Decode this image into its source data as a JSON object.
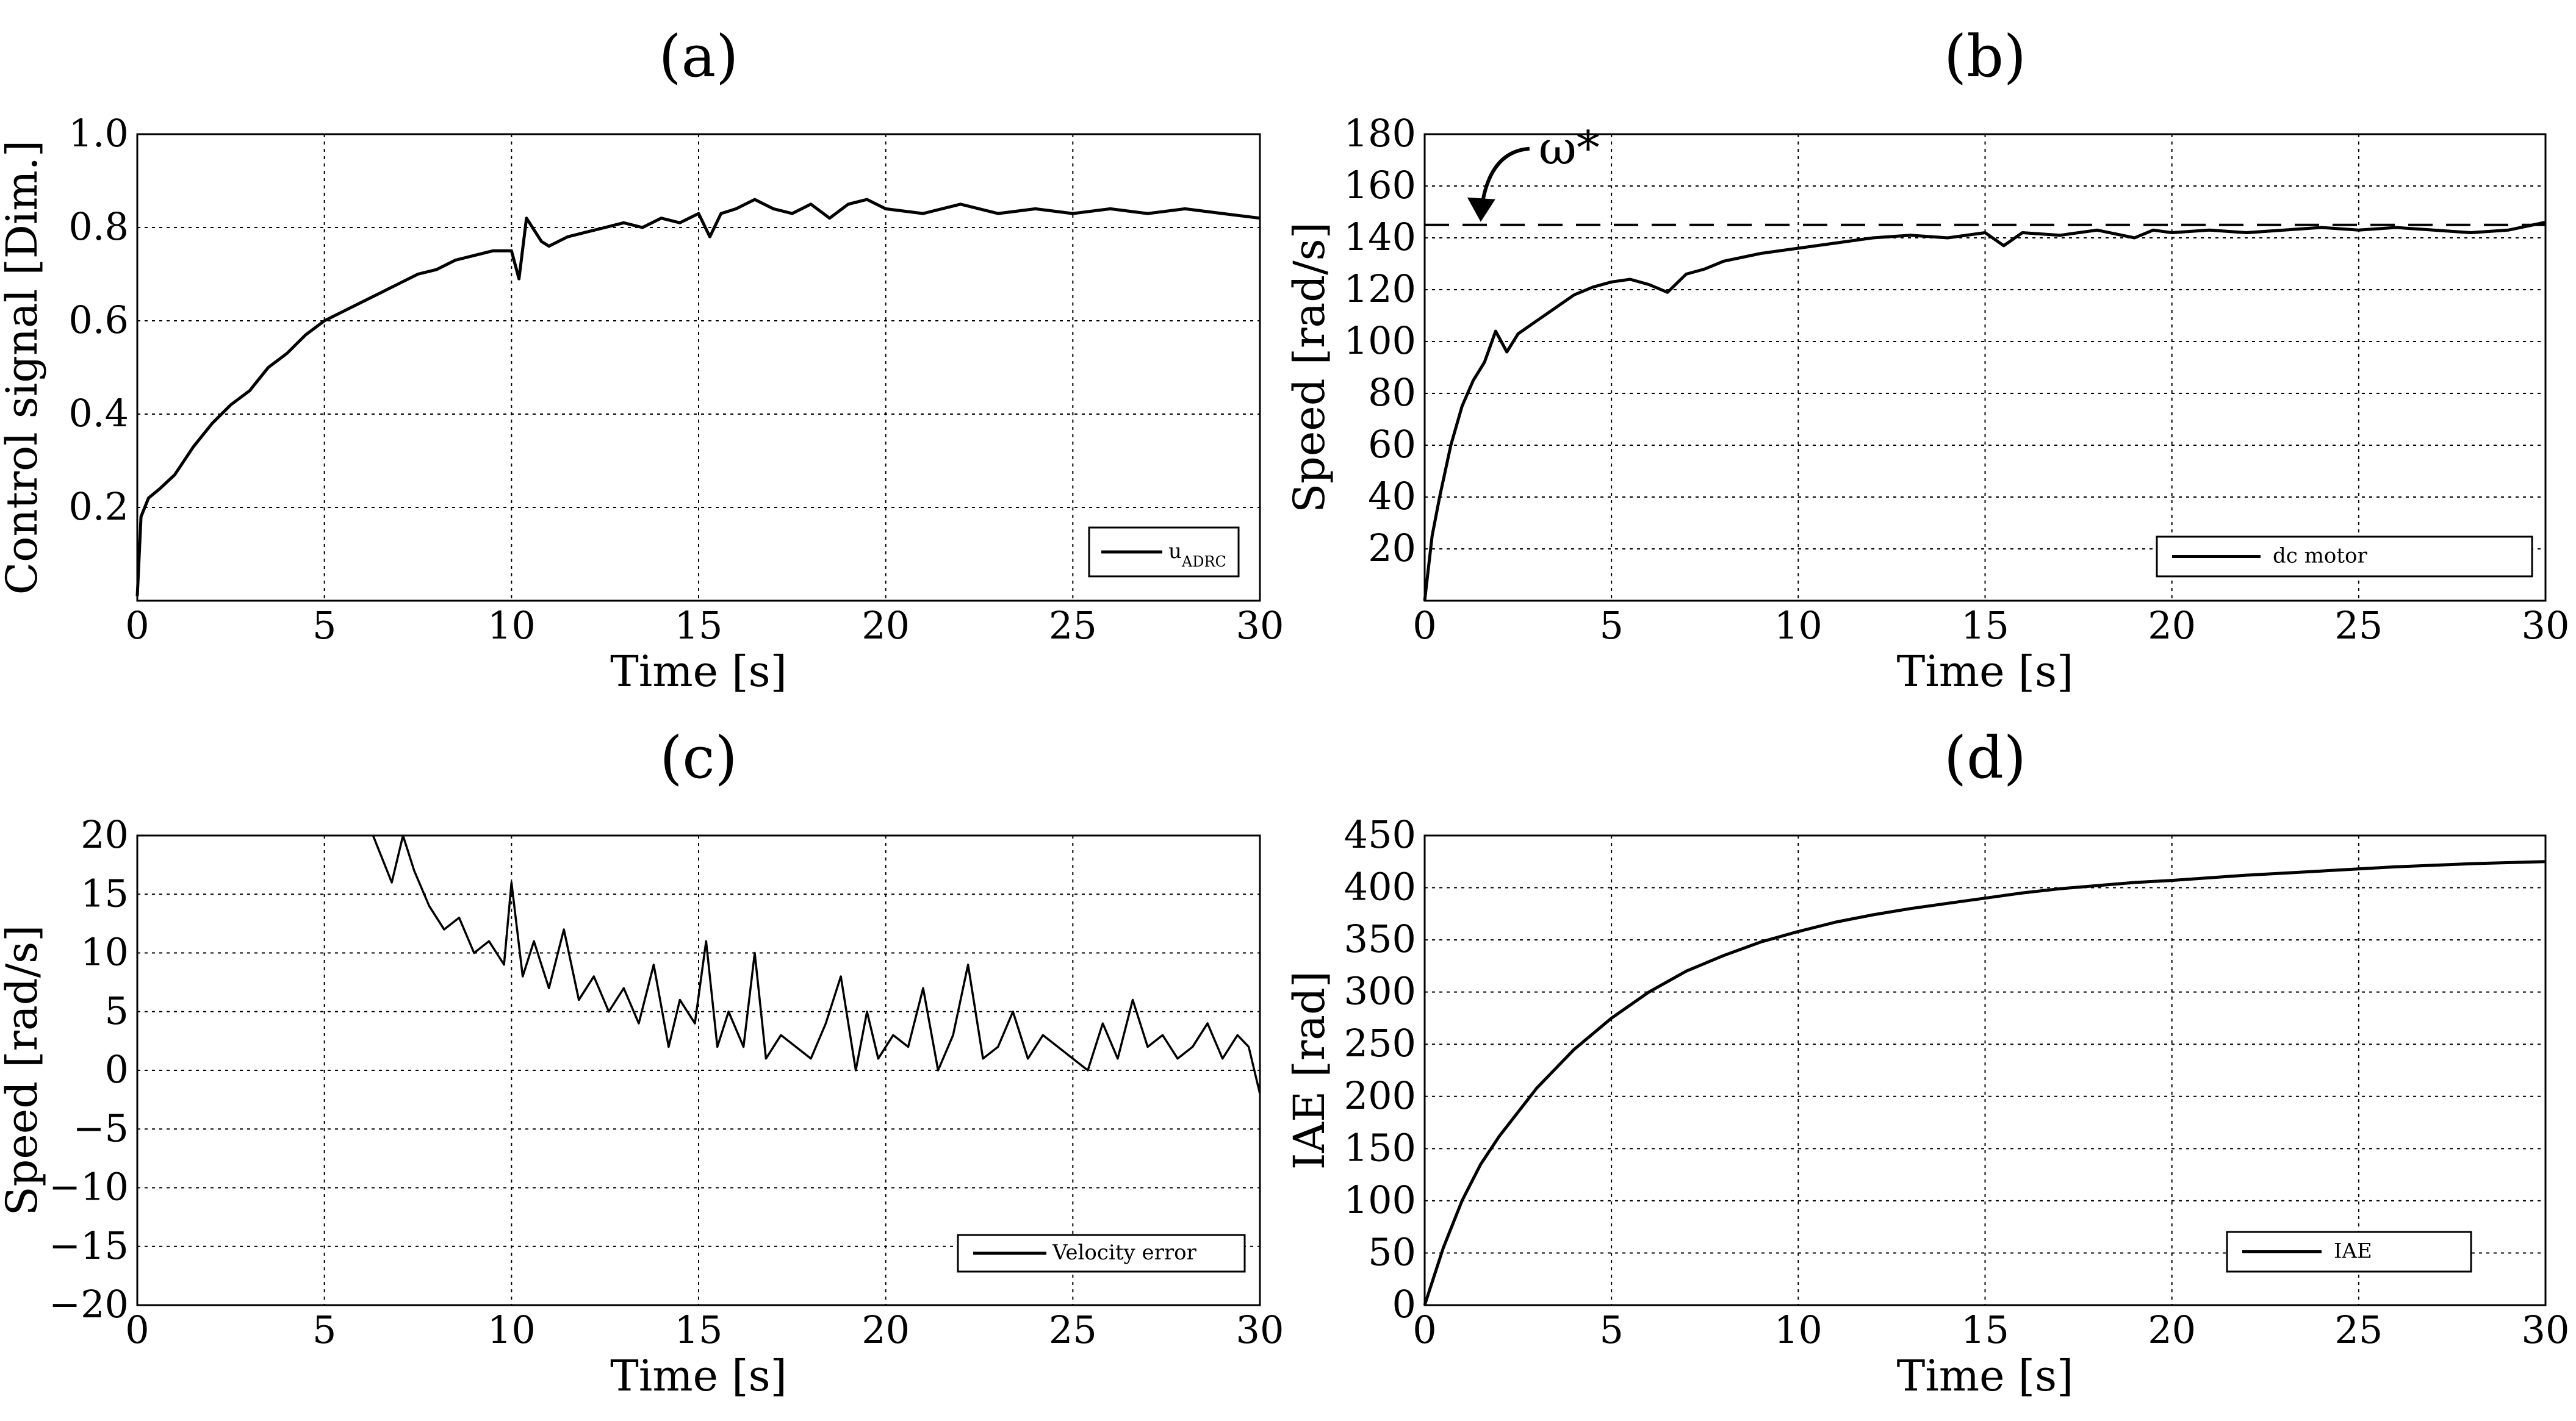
{
  "chart_data": [
    {
      "type": "line",
      "id": "a",
      "title": "(a)",
      "xlabel": "Time [s]",
      "ylabel": "Control signal [Dim.]",
      "xlim": [
        0,
        30
      ],
      "ylim": [
        0,
        1.0
      ],
      "xticks": [
        0,
        5,
        10,
        15,
        20,
        25,
        30
      ],
      "yticks": [
        0.2,
        0.4,
        0.6,
        0.8,
        1.0
      ],
      "ytick_labels": [
        "0.2",
        "0.4",
        "0.6",
        "0.8",
        "1.0"
      ],
      "grid": true,
      "legend": {
        "position": "bottom-right",
        "label": "u",
        "subscript": "ADRC"
      },
      "series": [
        {
          "name": "uADRC",
          "x": [
            0,
            0.1,
            0.3,
            0.6,
            1,
            1.5,
            2,
            2.5,
            3,
            3.5,
            4,
            4.5,
            5,
            5.5,
            6,
            6.5,
            7,
            7.5,
            8,
            8.5,
            9,
            9.5,
            10,
            10.2,
            10.4,
            10.8,
            11,
            11.5,
            12,
            12.5,
            13,
            13.5,
            14,
            14.5,
            15,
            15.3,
            15.6,
            16,
            16.5,
            17,
            17.5,
            18,
            18.5,
            19,
            19.5,
            20,
            21,
            22,
            23,
            24,
            25,
            26,
            27,
            28,
            29,
            30
          ],
          "y": [
            0.01,
            0.18,
            0.22,
            0.24,
            0.27,
            0.33,
            0.38,
            0.42,
            0.45,
            0.5,
            0.53,
            0.57,
            0.6,
            0.62,
            0.64,
            0.66,
            0.68,
            0.7,
            0.71,
            0.73,
            0.74,
            0.75,
            0.75,
            0.69,
            0.82,
            0.77,
            0.76,
            0.78,
            0.79,
            0.8,
            0.81,
            0.8,
            0.82,
            0.81,
            0.83,
            0.78,
            0.83,
            0.84,
            0.86,
            0.84,
            0.83,
            0.85,
            0.82,
            0.85,
            0.86,
            0.84,
            0.83,
            0.85,
            0.83,
            0.84,
            0.83,
            0.84,
            0.83,
            0.84,
            0.83,
            0.82
          ]
        }
      ]
    },
    {
      "type": "line",
      "id": "b",
      "title": "(b)",
      "xlabel": "Time [s]",
      "ylabel": "Speed [rad/s]",
      "xlim": [
        0,
        30
      ],
      "ylim": [
        0,
        180
      ],
      "xticks": [
        0,
        5,
        10,
        15,
        20,
        25,
        30
      ],
      "yticks": [
        20,
        40,
        60,
        80,
        100,
        120,
        140,
        160,
        180
      ],
      "ytick_labels": [
        "20",
        "40",
        "60",
        "80",
        "100",
        "120",
        "140",
        "160",
        "180"
      ],
      "grid": true,
      "reference": {
        "value": 145,
        "label": "ω*",
        "style": "dashed"
      },
      "legend": {
        "position": "bottom-right",
        "label": "dc motor"
      },
      "series": [
        {
          "name": "dc motor",
          "x": [
            0,
            0.2,
            0.4,
            0.7,
            1,
            1.3,
            1.6,
            1.9,
            2.2,
            2.5,
            3,
            3.5,
            4,
            4.5,
            5,
            5.5,
            6,
            6.5,
            7,
            7.5,
            8,
            9,
            10,
            11,
            12,
            13,
            14,
            15,
            15.5,
            16,
            17,
            18,
            19,
            19.5,
            20,
            21,
            22,
            23,
            24,
            25,
            26,
            27,
            28,
            29,
            30
          ],
          "y": [
            0,
            25,
            40,
            60,
            75,
            85,
            92,
            104,
            96,
            103,
            108,
            113,
            118,
            121,
            123,
            124,
            122,
            119,
            126,
            128,
            131,
            134,
            136,
            138,
            140,
            141,
            140,
            142,
            137,
            142,
            141,
            143,
            140,
            143,
            142,
            143,
            142,
            143,
            144,
            143,
            144,
            143,
            142,
            143,
            146
          ]
        }
      ]
    },
    {
      "type": "line",
      "id": "c",
      "title": "(c)",
      "xlabel": "Time [s]",
      "ylabel": "Speed [rad/s]",
      "xlim": [
        0,
        30
      ],
      "ylim": [
        -20,
        20
      ],
      "xticks": [
        0,
        5,
        10,
        15,
        20,
        25,
        30
      ],
      "yticks": [
        -20,
        -15,
        -10,
        -5,
        0,
        5,
        10,
        15,
        20
      ],
      "ytick_labels": [
        "−20",
        "−15",
        "−10",
        "−5",
        "0",
        "5",
        "10",
        "15",
        "20"
      ],
      "grid": true,
      "legend": {
        "position": "bottom-right",
        "label": "Velocity error"
      },
      "series": [
        {
          "name": "Velocity error",
          "x": [
            6.3,
            6.8,
            7.1,
            7.4,
            7.8,
            8.2,
            8.6,
            9.0,
            9.4,
            9.8,
            10.0,
            10.3,
            10.6,
            11.0,
            11.4,
            11.8,
            12.2,
            12.6,
            13.0,
            13.4,
            13.8,
            14.2,
            14.5,
            14.9,
            15.2,
            15.5,
            15.8,
            16.2,
            16.5,
            16.8,
            17.2,
            17.6,
            18.0,
            18.4,
            18.8,
            19.2,
            19.5,
            19.8,
            20.2,
            20.6,
            21.0,
            21.4,
            21.8,
            22.2,
            22.6,
            23.0,
            23.4,
            23.8,
            24.2,
            24.6,
            25.0,
            25.4,
            25.8,
            26.2,
            26.6,
            27.0,
            27.4,
            27.8,
            28.2,
            28.6,
            29.0,
            29.4,
            29.7,
            30.0
          ],
          "y": [
            20,
            16,
            20,
            17,
            14,
            12,
            13,
            10,
            11,
            9,
            16,
            8,
            11,
            7,
            12,
            6,
            8,
            5,
            7,
            4,
            9,
            2,
            6,
            4,
            11,
            2,
            5,
            2,
            10,
            1,
            3,
            2,
            1,
            4,
            8,
            0,
            5,
            1,
            3,
            2,
            7,
            0,
            3,
            9,
            1,
            2,
            5,
            1,
            3,
            2,
            1,
            0,
            4,
            1,
            6,
            2,
            3,
            1,
            2,
            4,
            1,
            3,
            2,
            -2
          ]
        }
      ]
    },
    {
      "type": "line",
      "id": "d",
      "title": "(d)",
      "xlabel": "Time [s]",
      "ylabel": "IAE [rad]",
      "xlim": [
        0,
        30
      ],
      "ylim": [
        0,
        450
      ],
      "xticks": [
        0,
        5,
        10,
        15,
        20,
        25,
        30
      ],
      "yticks": [
        0,
        50,
        100,
        150,
        200,
        250,
        300,
        350,
        400,
        450
      ],
      "ytick_labels": [
        "0",
        "50",
        "100",
        "150",
        "200",
        "250",
        "300",
        "350",
        "400",
        "450"
      ],
      "grid": true,
      "legend": {
        "position": "bottom-right",
        "label": "IAE"
      },
      "series": [
        {
          "name": "IAE",
          "x": [
            0,
            0.5,
            1,
            1.5,
            2,
            3,
            4,
            5,
            6,
            7,
            8,
            9,
            10,
            11,
            12,
            13,
            14,
            15,
            16,
            17,
            18,
            19,
            20,
            22,
            24,
            26,
            28,
            30
          ],
          "y": [
            0,
            55,
            100,
            135,
            162,
            208,
            245,
            275,
            300,
            320,
            335,
            348,
            358,
            367,
            374,
            380,
            385,
            390,
            395,
            399,
            402,
            405,
            407,
            412,
            416,
            420,
            423,
            425
          ]
        }
      ]
    }
  ]
}
